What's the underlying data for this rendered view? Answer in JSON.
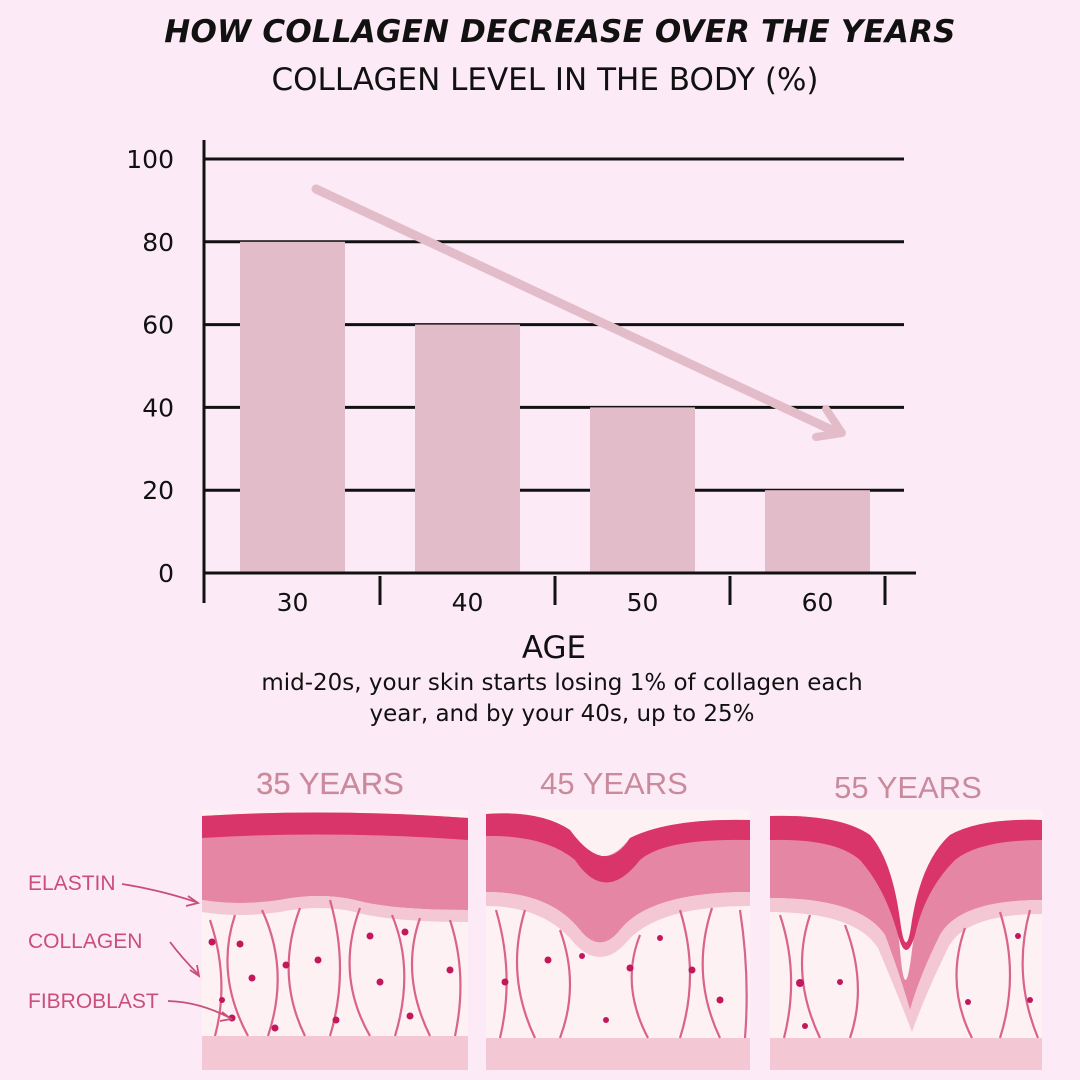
{
  "title": "HOW COLLAGEN DECREASE OVER THE YEARS",
  "subtitle": "COLLAGEN LEVEL IN THE BODY (%)",
  "caption_line1": "mid-20s, your skin starts losing 1% of collagen each",
  "caption_line2": "year, and by your 40s, up to 25%",
  "colors": {
    "background": "#fcebf6",
    "bar": "#e3bcc9",
    "arrow": "#e3bcc9",
    "grid": "#111111",
    "skin_top": "#d9356a",
    "skin_mid": "#e686a5",
    "skin_light": "#f3c7d4",
    "dermis": "#fdf1f3",
    "fiber": "#d9638a"
  },
  "chart_data": {
    "type": "bar",
    "title": "HOW COLLAGEN DECREASE OVER THE YEARS",
    "subtitle": "COLLAGEN LEVEL IN THE BODY (%)",
    "categories": [
      "30",
      "40",
      "50",
      "60"
    ],
    "values": [
      80,
      60,
      40,
      20
    ],
    "xlabel": "AGE",
    "ylabel": "",
    "ylim": [
      0,
      100
    ],
    "yticks": [
      0,
      20,
      40,
      60,
      80,
      100
    ],
    "grid": true,
    "annotation": "downward trend arrow"
  },
  "diagram": {
    "panels": [
      "35 YEARS",
      "45 YEARS",
      "55 YEARS"
    ],
    "labels": [
      "ELASTIN",
      "COLLAGEN",
      "FIBROBLAST"
    ]
  }
}
